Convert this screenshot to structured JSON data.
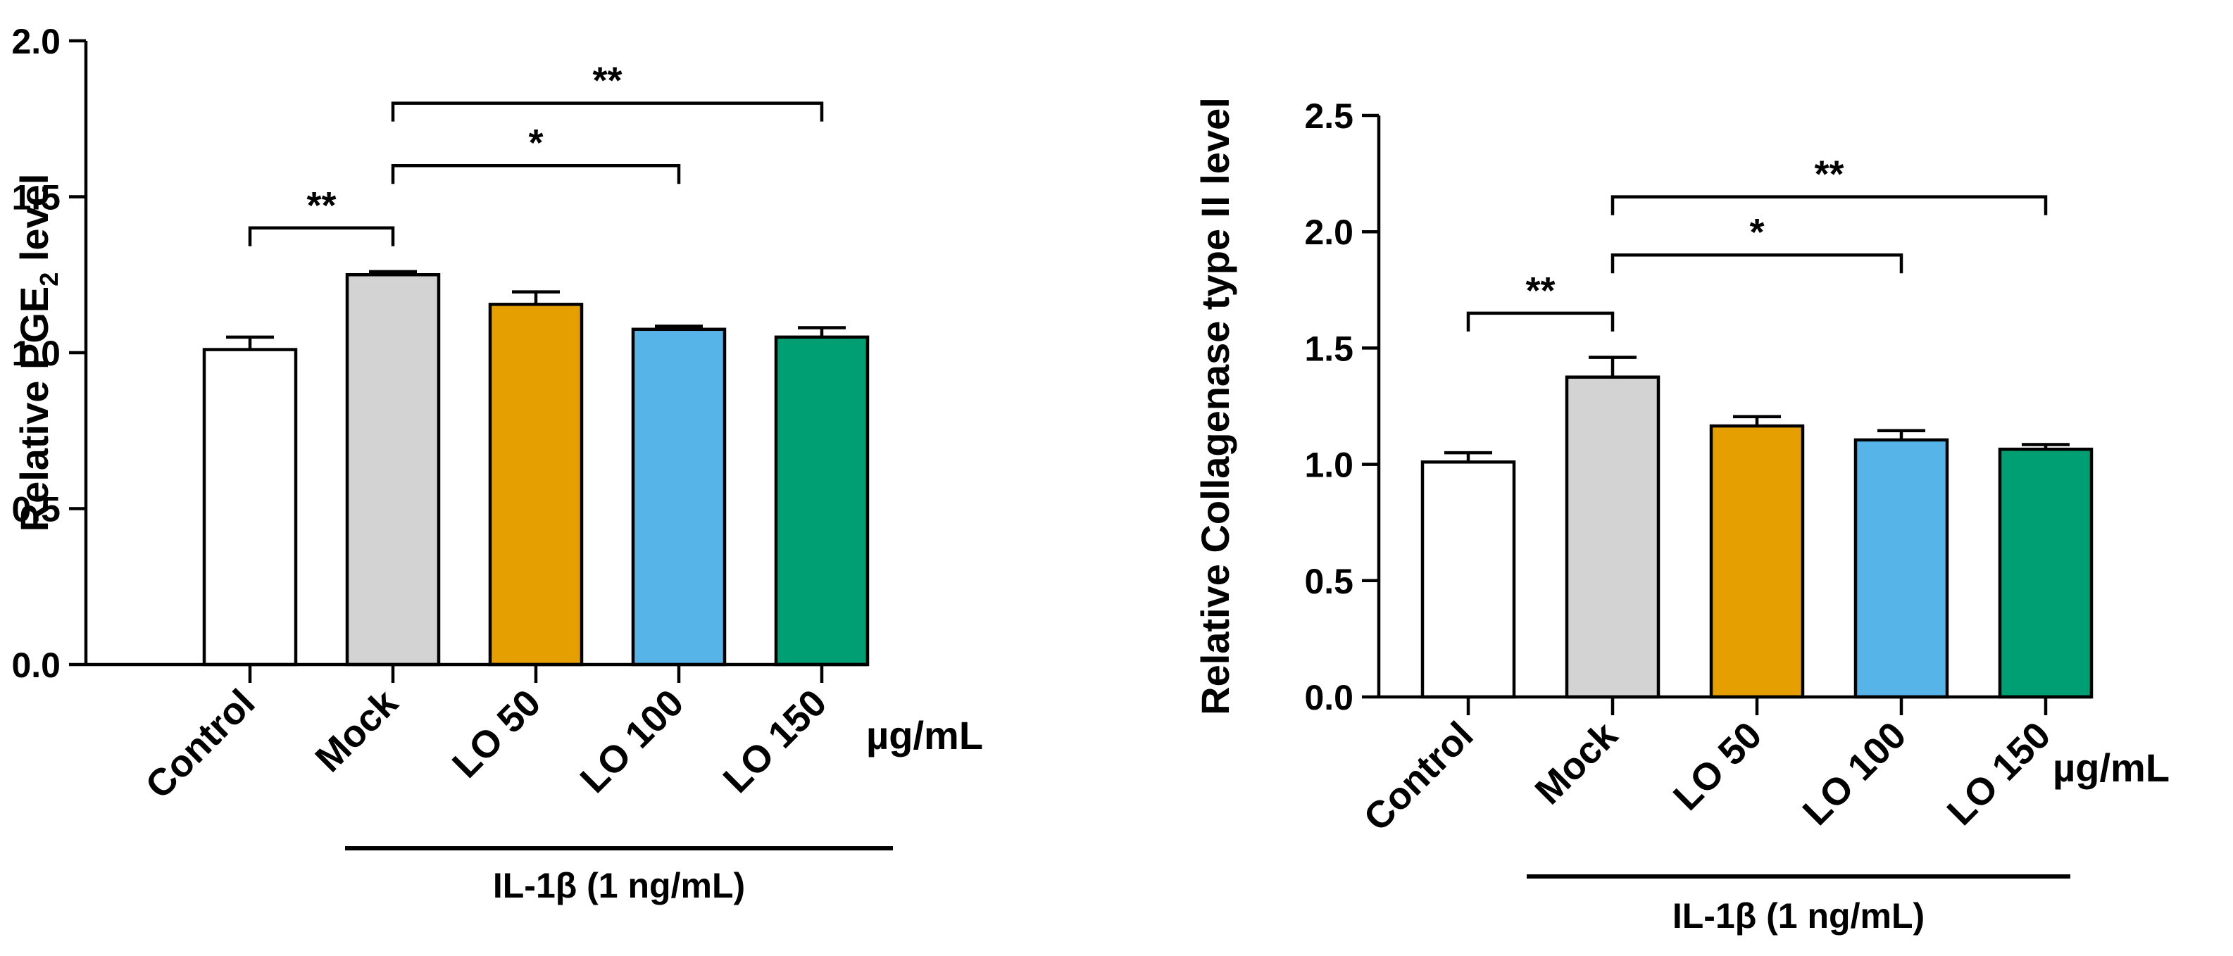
{
  "chart_data": [
    {
      "type": "bar",
      "ylabel_main": "Relative PGE",
      "ylabel_sub": "2",
      "ylabel_tail": " level",
      "categories": [
        "Control",
        "Mock",
        "LO 50",
        "LO 100",
        "LO 150"
      ],
      "values": [
        1.01,
        1.25,
        1.155,
        1.075,
        1.05
      ],
      "errors": [
        0.04,
        0.01,
        0.04,
        0.01,
        0.03
      ],
      "colors": [
        "#ffffff",
        "#d3d3d3",
        "#e69f00",
        "#56b4e9",
        "#009e73"
      ],
      "ylim": [
        0,
        2.0
      ],
      "yticks": [
        0.0,
        0.5,
        1.0,
        1.5,
        2.0
      ],
      "ytick_labels": [
        "0.0",
        "0.5",
        "1.0",
        "1.5",
        "2.0"
      ],
      "unit": "µg/mL",
      "treatment_label": "IL-1β (1 ng/mL)",
      "treatment_span": [
        1,
        4
      ],
      "significance": [
        {
          "from": 0,
          "to": 1,
          "y": 1.4,
          "label": "**"
        },
        {
          "from": 1,
          "to": 3,
          "y": 1.6,
          "label": "*"
        },
        {
          "from": 1,
          "to": 4,
          "y": 1.8,
          "label": "**"
        }
      ]
    },
    {
      "type": "bar",
      "ylabel_main": "Relative Collagenase type II  level",
      "ylabel_sub": "",
      "ylabel_tail": "",
      "categories": [
        "Control",
        "Mock",
        "LO 50",
        "LO 100",
        "LO 150"
      ],
      "values": [
        1.01,
        1.375,
        1.165,
        1.105,
        1.065
      ],
      "errors": [
        0.04,
        0.085,
        0.04,
        0.04,
        0.02
      ],
      "colors": [
        "#ffffff",
        "#d3d3d3",
        "#e69f00",
        "#56b4e9",
        "#009e73"
      ],
      "ylim": [
        0,
        2.5
      ],
      "yticks": [
        0.0,
        0.5,
        1.0,
        1.5,
        2.0,
        2.5
      ],
      "ytick_labels": [
        "0.0",
        "0.5",
        "1.0",
        "1.5",
        "2.0",
        "2.5"
      ],
      "unit": "µg/mL",
      "treatment_label": "IL-1β (1 ng/mL)",
      "treatment_span": [
        1,
        4
      ],
      "significance": [
        {
          "from": 0,
          "to": 1,
          "y": 1.65,
          "label": "**"
        },
        {
          "from": 1,
          "to": 3,
          "y": 1.9,
          "label": "*"
        },
        {
          "from": 1,
          "to": 4,
          "y": 2.15,
          "label": "**"
        }
      ]
    }
  ]
}
